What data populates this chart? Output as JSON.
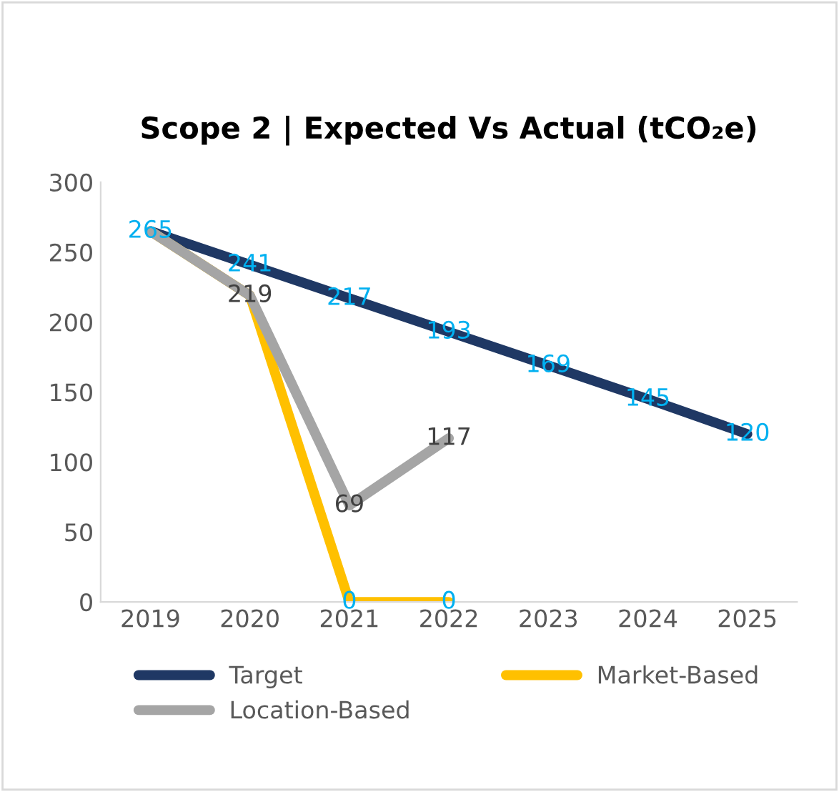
{
  "chart_data": {
    "type": "line",
    "title": "Scope 2 | Expected Vs Actual (tCO₂e)",
    "categories": [
      "2019",
      "2020",
      "2021",
      "2022",
      "2023",
      "2024",
      "2025"
    ],
    "series": [
      {
        "name": "Target",
        "color": "#1f3864",
        "values": [
          265,
          241,
          217,
          193,
          169,
          145,
          120
        ],
        "value_labels": [
          "265",
          "241",
          "217",
          "193",
          "169",
          "145",
          "120"
        ]
      },
      {
        "name": "Market-Based",
        "color": "#ffc000",
        "values": [
          265,
          219,
          0,
          0,
          null,
          null,
          null
        ],
        "value_labels": [
          null,
          null,
          "0",
          "0",
          null,
          null,
          null
        ]
      },
      {
        "name": "Location-Based",
        "color": "#a5a5a5",
        "values": [
          265,
          219,
          69,
          117,
          null,
          null,
          null
        ],
        "value_labels": [
          null,
          "219",
          "69",
          "117",
          null,
          null,
          null
        ]
      }
    ],
    "ylim": [
      0,
      300
    ],
    "yticks": [
      0,
      50,
      100,
      150,
      200,
      250,
      300
    ],
    "grid": false,
    "legend": "bottom",
    "marker": "none",
    "line_style": "solid"
  }
}
